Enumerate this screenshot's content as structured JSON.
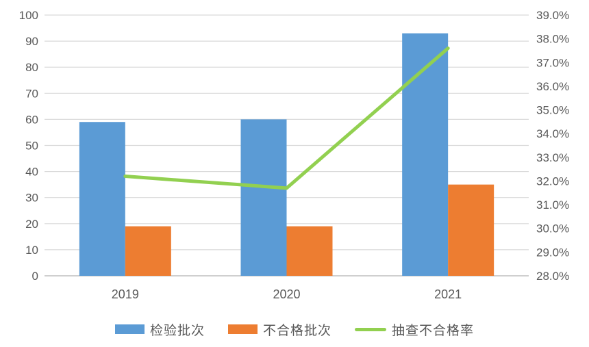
{
  "chart_data": {
    "type": "combo-bar-line",
    "categories": [
      "2019",
      "2020",
      "2021"
    ],
    "series": [
      {
        "key": "inspection-batches",
        "name": "检验批次",
        "type": "bar",
        "axis": "left",
        "color": "#5B9BD5",
        "values": [
          59,
          60,
          93
        ]
      },
      {
        "key": "failed-batches",
        "name": "不合格批次",
        "type": "bar",
        "axis": "left",
        "color": "#ED7D31",
        "values": [
          19,
          19,
          35
        ]
      },
      {
        "key": "spot-check-failure-rate",
        "name": "抽查不合格率",
        "type": "line",
        "axis": "right",
        "color": "#92D050",
        "values": [
          32.2,
          31.7,
          37.6
        ]
      }
    ],
    "left_axis": {
      "min": 0,
      "max": 100,
      "step": 10,
      "tick_labels": [
        "100",
        "90",
        "80",
        "70",
        "60",
        "50",
        "40",
        "30",
        "20",
        "10",
        "0"
      ]
    },
    "right_axis": {
      "min": 28,
      "max": 39,
      "step": 1,
      "tick_labels": [
        "39.0%",
        "38.0%",
        "37.0%",
        "36.0%",
        "35.0%",
        "34.0%",
        "33.0%",
        "32.0%",
        "31.0%",
        "30.0%",
        "29.0%",
        "28.0%"
      ]
    },
    "grid": true,
    "legend_position": "bottom",
    "title": "",
    "xlabel": "",
    "ylabel": ""
  },
  "colors": {
    "axis_text": "#595959",
    "gridline": "#D9D9D9",
    "baseline": "#BFBFBF",
    "background": "#FFFFFF",
    "bar_blue": "#5B9BD5",
    "bar_orange": "#ED7D31",
    "line_green": "#92D050"
  }
}
